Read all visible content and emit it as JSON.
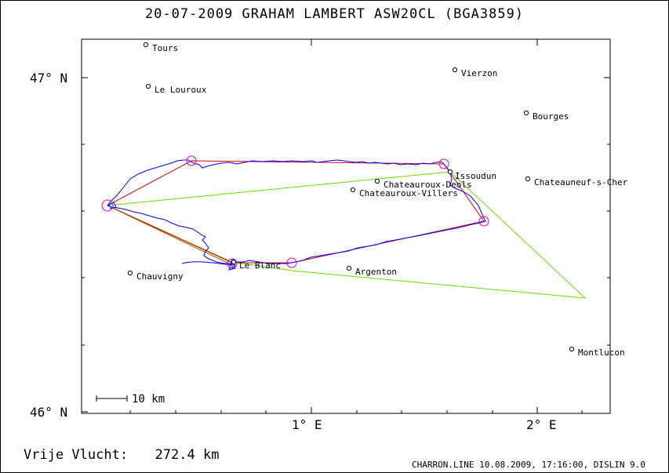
{
  "title": "20-07-2009   GRAHAM LAMBERT   ASW20CL (BGA3859)",
  "footer": {
    "distance_label": "Vrije Vlucht:",
    "distance_value": "272.4 km",
    "software": "CHARRON.LINE 10.08.2009, 17:16:00, DISLIN 9.0"
  },
  "axes": {
    "lat_labels": [
      "47° N",
      "46° N"
    ],
    "lon_labels": [
      "1° E",
      "2° E"
    ]
  },
  "scale_bar": {
    "label": "10 km"
  },
  "places": [
    {
      "name": "Tours"
    },
    {
      "name": "Le Louroux"
    },
    {
      "name": "Vierzon"
    },
    {
      "name": "Bourges"
    },
    {
      "name": "Issoudun"
    },
    {
      "name": "Chateauneuf-s-Cher"
    },
    {
      "name": "Chateauroux-Deols"
    },
    {
      "name": "Chateauroux-Villers"
    },
    {
      "name": "Chauvigny"
    },
    {
      "name": "Le Blanc"
    },
    {
      "name": "Argenton"
    },
    {
      "name": "Montlucon"
    }
  ],
  "colors": {
    "track": "#0000ff",
    "task": "#dd0000",
    "free_flight": "#66dd00",
    "turnpoint": "#dd00dd"
  }
}
